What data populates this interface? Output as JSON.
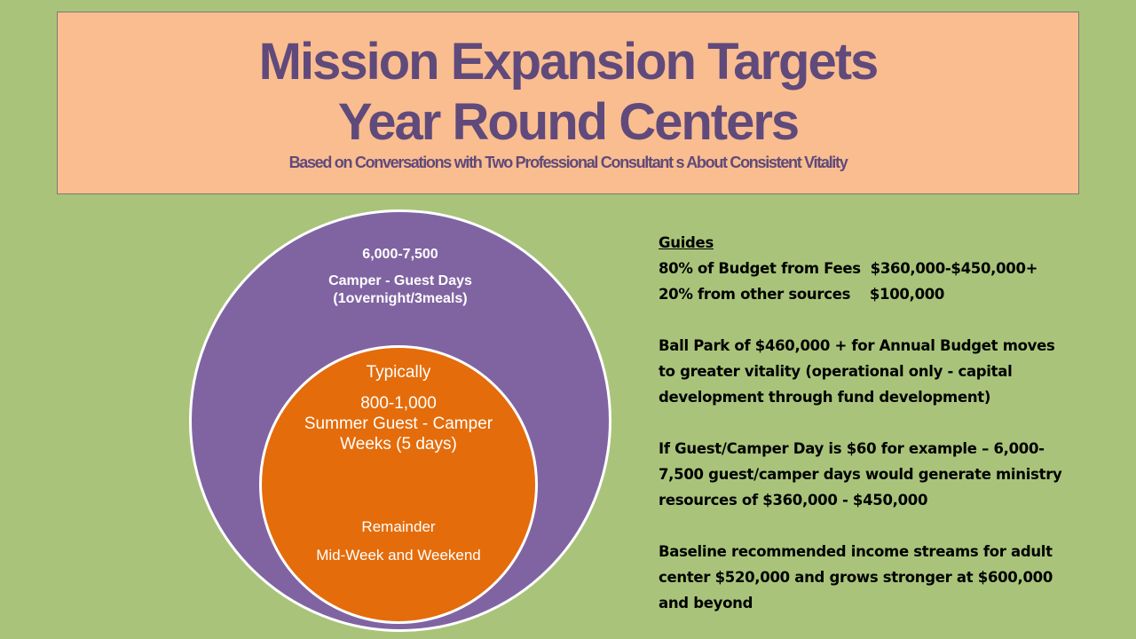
{
  "title": {
    "line1": "Mission Expansion Targets",
    "line2": "Year Round Centers",
    "subtitle": "Based on Conversations with Two Professional Consultant s About Consistent Vitality"
  },
  "diagram": {
    "outer": {
      "value": "6,000-7,500",
      "label": "Camper - Guest Days (1overnight/3meals)"
    },
    "inner": {
      "typically": "Typically",
      "value": "800-1,000",
      "label": "Summer Guest - Camper Weeks (5 days)",
      "remainder": "Remainder",
      "remainder_label": "Mid-Week and Weekend"
    },
    "colors": {
      "outer": "#8064a2",
      "inner": "#e46c0a"
    }
  },
  "guides": {
    "heading": "Guides",
    "line1": "80% of Budget from Fees  $360,000-$450,000+",
    "line2": "20% from other sources    $100,000",
    "para1_l1": "Ball Park of $460,000 +  for Annual Budget moves",
    "para1_l2": "to greater vitality (operational only - capital",
    "para1_l3": "development through fund development)",
    "para2_l1": "If Guest/Camper Day is $60 for example – 6,000-",
    "para2_l2": "7,500 guest/camper days would generate ministry",
    "para2_l3": "resources of $360,000 - $450,000",
    "para3_l1": "Baseline recommended income streams for adult",
    "para3_l2": "center $520,000 and grows stronger at $600,000",
    "para3_l3": "and beyond"
  }
}
